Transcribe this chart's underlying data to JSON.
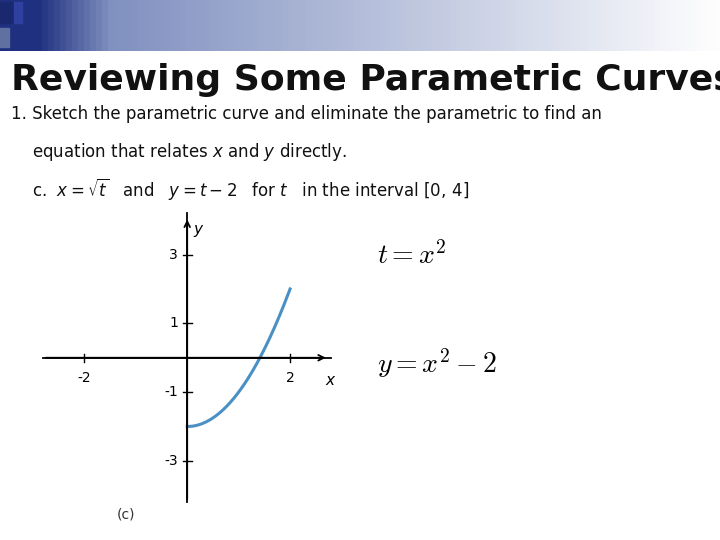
{
  "title": "Reviewing Some Parametric Curves",
  "title_fontsize": 26,
  "title_fontweight": "bold",
  "bg_color": "#ffffff",
  "body_fontsize": 12,
  "curve_color": "#4a90c4",
  "curve_linewidth": 2.2,
  "x_label": "x",
  "y_label": "y",
  "xlim": [
    -2.8,
    2.8
  ],
  "ylim": [
    -4.2,
    4.2
  ],
  "xticks": [
    -2,
    2
  ],
  "yticks": [
    -3,
    -1,
    1,
    3
  ],
  "caption": "(c)",
  "eq1": "$t = x^2$",
  "eq2": "$y = x^2 - 2$",
  "eq_fontsize": 20,
  "eq_color": "#000000",
  "header_left_color1": "#1a2a6e",
  "header_left_color2": "#4a5a9e",
  "header_right_color": "#d0d8ee"
}
